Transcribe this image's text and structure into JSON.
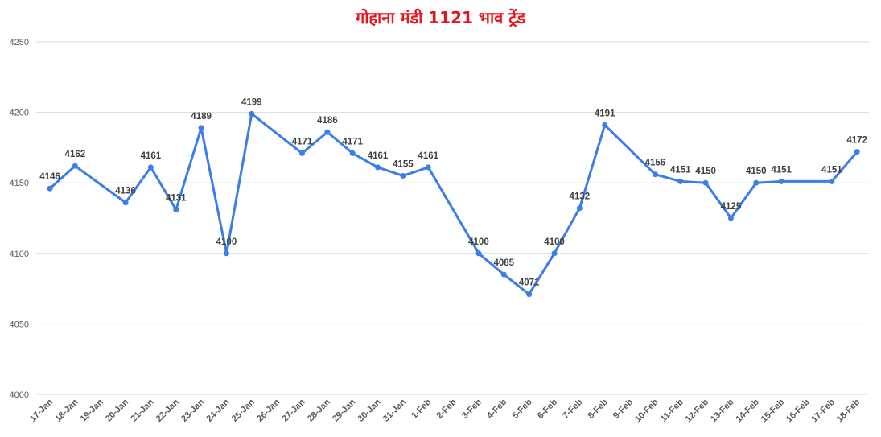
{
  "chart_data": {
    "type": "line",
    "title": "गोहाना मंडी 1121 भाव ट्रेंड",
    "xlabel": "",
    "ylabel": "",
    "ylim": [
      4000,
      4250
    ],
    "yticks": [
      4000,
      4050,
      4100,
      4150,
      4200,
      4250
    ],
    "grid": true,
    "legend": "none",
    "line_color": "#3b7de9",
    "title_color": "#e3141a",
    "categories": [
      "17-Jan",
      "18-Jan",
      "19-Jan",
      "20-Jan",
      "21-Jan",
      "22-Jan",
      "23-Jan",
      "24-Jan",
      "25-Jan",
      "26-Jan",
      "27-Jan",
      "28-Jan",
      "29-Jan",
      "30-Jan",
      "31-Jan",
      "1-Feb",
      "2-Feb",
      "3-Feb",
      "4-Feb",
      "5-Feb",
      "6-Feb",
      "7-Feb",
      "8-Feb",
      "9-Feb",
      "10-Feb",
      "11-Feb",
      "12-Feb",
      "13-Feb",
      "14-Feb",
      "15-Feb",
      "16-Feb",
      "17-Feb",
      "18-Feb"
    ],
    "values": [
      4146,
      4162,
      null,
      4136,
      4161,
      4131,
      4189,
      4100,
      4199,
      null,
      4171,
      4186,
      4171,
      4161,
      4155,
      4161,
      null,
      4100,
      4085,
      4071,
      4100,
      4132,
      4191,
      null,
      4156,
      4151,
      4150,
      4125,
      4150,
      4151,
      null,
      4151,
      4172
    ]
  }
}
